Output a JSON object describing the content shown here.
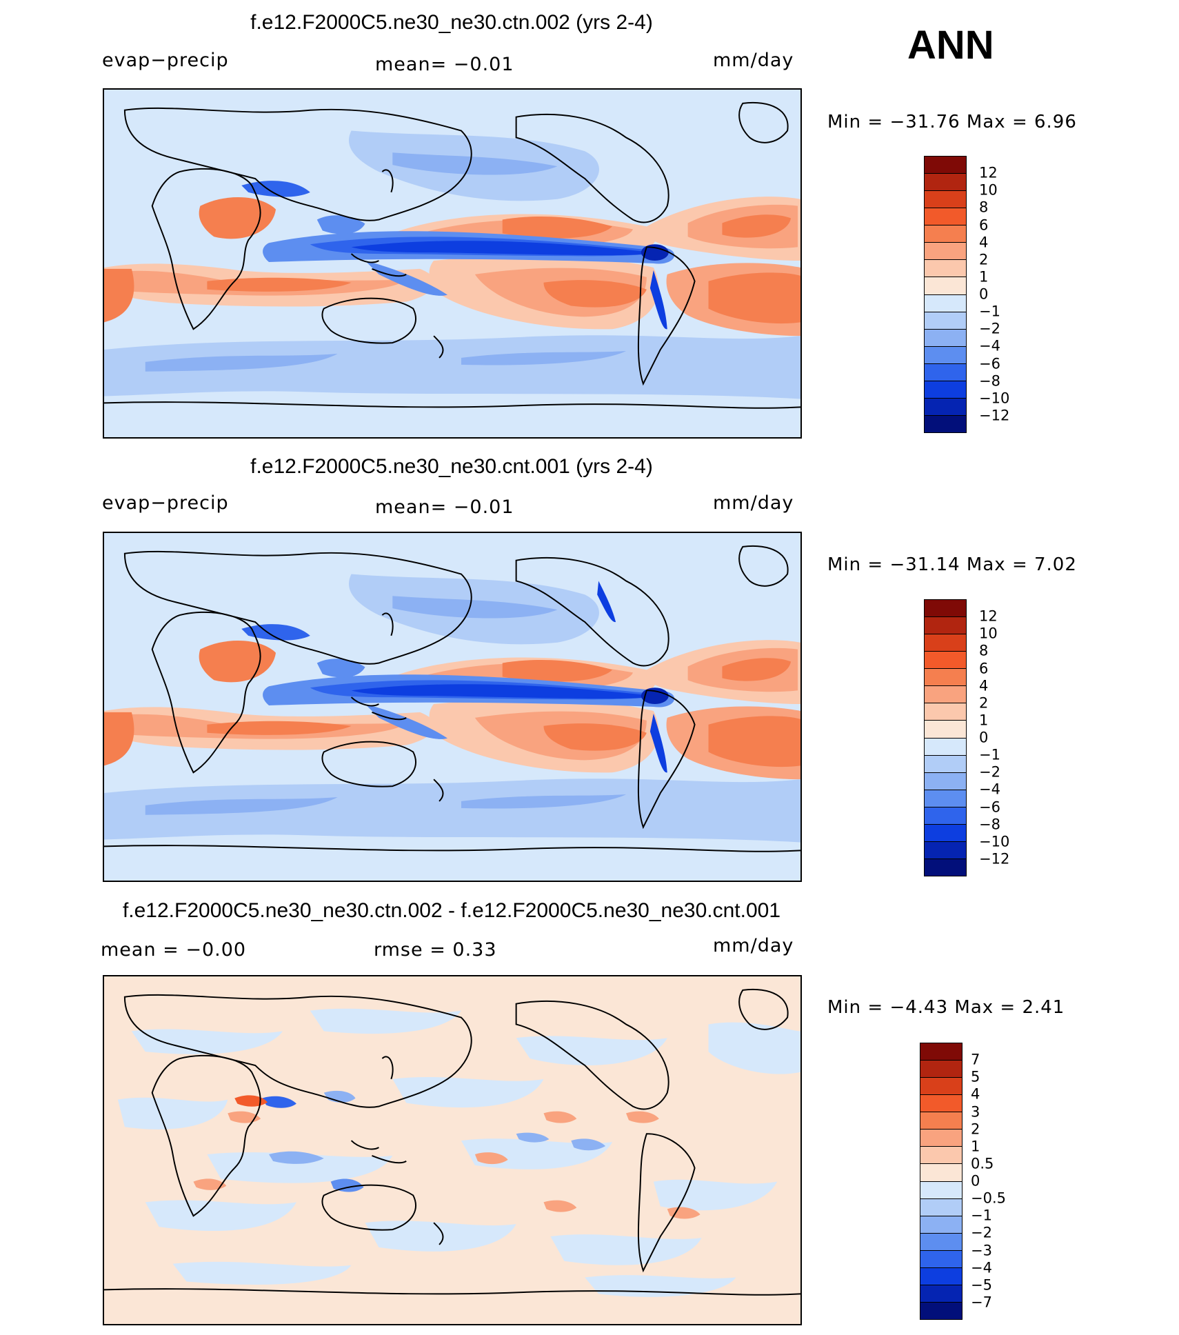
{
  "season": "ANN",
  "units": "mm/day",
  "colors": {
    "ocean_background": "#d6e8fb",
    "coastline": "#000000",
    "positive_ramp": [
      "#fbe6d6",
      "#fbc8ad",
      "#f9a37f",
      "#f57f4f",
      "#f25a2a",
      "#d9401a",
      "#b12510",
      "#7f0a06"
    ],
    "negative_ramp": [
      "#d6e8fb",
      "#b1cdf7",
      "#8cb1f3",
      "#5d8ef0",
      "#2f64ec",
      "#0d3ee0",
      "#0524b2",
      "#020f7a"
    ]
  },
  "panels": [
    {
      "id": "ctn",
      "title": "f.e12.F2000C5.ne30_ne30.ctn.002 (yrs 2-4)",
      "left_label": "evap−precip",
      "center_label": "mean=   −0.01",
      "right_label": "mm/day",
      "min_label": "Min  =  −31.76  Max  =      6.96",
      "colorbar_levels": [
        "12",
        "10",
        "8",
        "6",
        "4",
        "2",
        "1",
        "0",
        "−1",
        "−2",
        "−4",
        "−6",
        "−8",
        "−10",
        "−12"
      ],
      "colorbar_colors": [
        "#7f0a06",
        "#b12510",
        "#d9401a",
        "#f25a2a",
        "#f57f4f",
        "#f9a37f",
        "#fbc8ad",
        "#fbe6d6",
        "#d6e8fb",
        "#b1cdf7",
        "#8cb1f3",
        "#5d8ef0",
        "#2f64ec",
        "#0d3ee0",
        "#0524b2",
        "#020f7a"
      ]
    },
    {
      "id": "cnt",
      "title": "f.e12.F2000C5.ne30_ne30.cnt.001 (yrs 2-4)",
      "left_label": "evap−precip",
      "center_label": "mean=   −0.01",
      "right_label": "mm/day",
      "min_label": "Min  =  −31.14  Max  =      7.02",
      "colorbar_levels": [
        "12",
        "10",
        "8",
        "6",
        "4",
        "2",
        "1",
        "0",
        "−1",
        "−2",
        "−4",
        "−6",
        "−8",
        "−10",
        "−12"
      ],
      "colorbar_colors": [
        "#7f0a06",
        "#b12510",
        "#d9401a",
        "#f25a2a",
        "#f57f4f",
        "#f9a37f",
        "#fbc8ad",
        "#fbe6d6",
        "#d6e8fb",
        "#b1cdf7",
        "#8cb1f3",
        "#5d8ef0",
        "#2f64ec",
        "#0d3ee0",
        "#0524b2",
        "#020f7a"
      ]
    },
    {
      "id": "diff",
      "title": "f.e12.F2000C5.ne30_ne30.ctn.002 - f.e12.F2000C5.ne30_ne30.cnt.001",
      "left_label": "mean  =    −0.00",
      "center_label": "rmse  =     0.33",
      "right_label": "mm/day",
      "min_label": "Min  =    −4.43  Max  =     2.41",
      "colorbar_levels": [
        "7",
        "5",
        "4",
        "3",
        "2",
        "1",
        "0.5",
        "0",
        "−0.5",
        "−1",
        "−2",
        "−3",
        "−4",
        "−5",
        "−7"
      ],
      "colorbar_colors": [
        "#7f0a06",
        "#b12510",
        "#d9401a",
        "#f25a2a",
        "#f57f4f",
        "#f9a37f",
        "#fbc8ad",
        "#fbe6d6",
        "#d6e8fb",
        "#b1cdf7",
        "#8cb1f3",
        "#5d8ef0",
        "#2f64ec",
        "#0d3ee0",
        "#0524b2",
        "#020f7a"
      ]
    }
  ]
}
